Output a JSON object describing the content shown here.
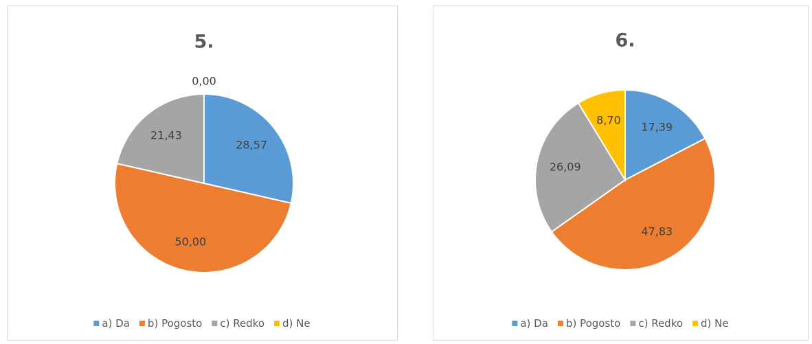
{
  "chart_data": [
    {
      "type": "pie",
      "title": "5.",
      "categories": [
        "a) Da",
        "b) Pogosto",
        "c) Redko",
        "d) Ne"
      ],
      "values": [
        28.57,
        50.0,
        21.43,
        0.0
      ],
      "value_labels": [
        "28,57",
        "50,00",
        "21,43",
        "0,00"
      ],
      "colors": [
        "#5b9bd5",
        "#ed7d31",
        "#a5a5a5",
        "#ffc000"
      ],
      "legend": "bottom"
    },
    {
      "type": "pie",
      "title": "6.",
      "categories": [
        "a) Da",
        "b) Pogosto",
        "c) Redko",
        "d) Ne"
      ],
      "values": [
        17.39,
        47.83,
        26.09,
        8.7
      ],
      "value_labels": [
        "17,39",
        "47,83",
        "26,09",
        "8,70"
      ],
      "colors": [
        "#5b9bd5",
        "#ed7d31",
        "#a5a5a5",
        "#ffc000"
      ],
      "legend": "bottom"
    }
  ]
}
